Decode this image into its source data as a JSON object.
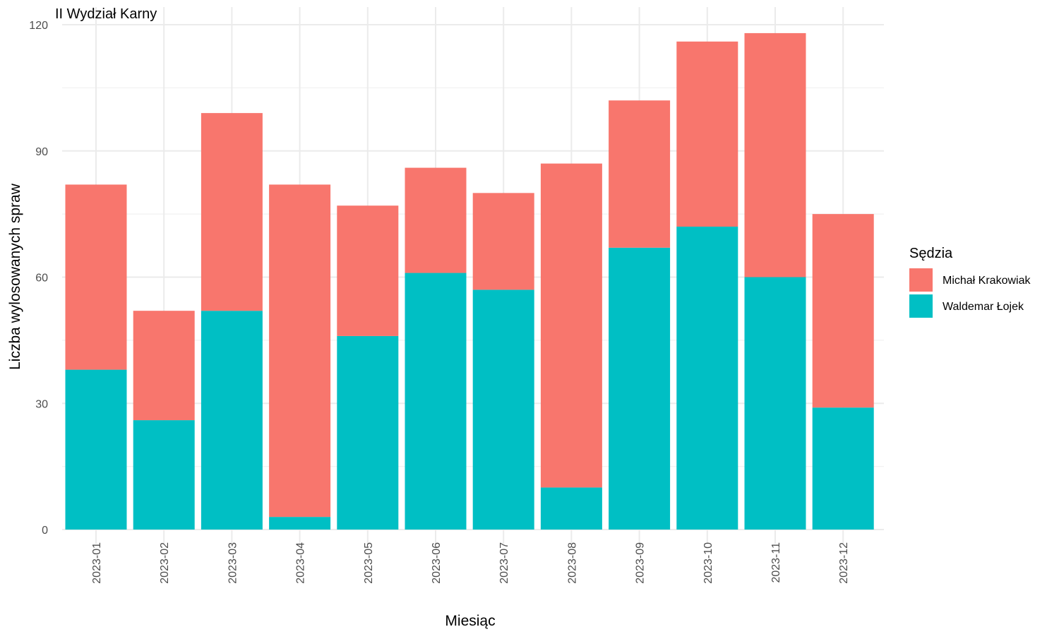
{
  "chart_data": {
    "type": "bar",
    "stacked": true,
    "title": "II Wydział Karny",
    "xlabel": "Miesiąc",
    "ylabel": "Liczba wylosowanych spraw",
    "categories": [
      "2023-01",
      "2023-02",
      "2023-03",
      "2023-04",
      "2023-05",
      "2023-06",
      "2023-07",
      "2023-08",
      "2023-09",
      "2023-10",
      "2023-11",
      "2023-12"
    ],
    "series": [
      {
        "name": "Waldemar Łojek",
        "color": "#00BFC4",
        "values": [
          38,
          26,
          52,
          3,
          46,
          61,
          57,
          10,
          67,
          72,
          60,
          29
        ]
      },
      {
        "name": "Michał Krakowiak",
        "color": "#F8766D",
        "values": [
          44,
          26,
          47,
          79,
          31,
          25,
          23,
          77,
          35,
          44,
          58,
          46
        ]
      }
    ],
    "ylim": [
      0,
      120
    ],
    "yticks": [
      0,
      30,
      60,
      90,
      120
    ],
    "grid": true,
    "legend": {
      "title": "Sędzia",
      "placement": "right",
      "order": [
        "Michał Krakowiak",
        "Waldemar Łojek"
      ]
    }
  }
}
